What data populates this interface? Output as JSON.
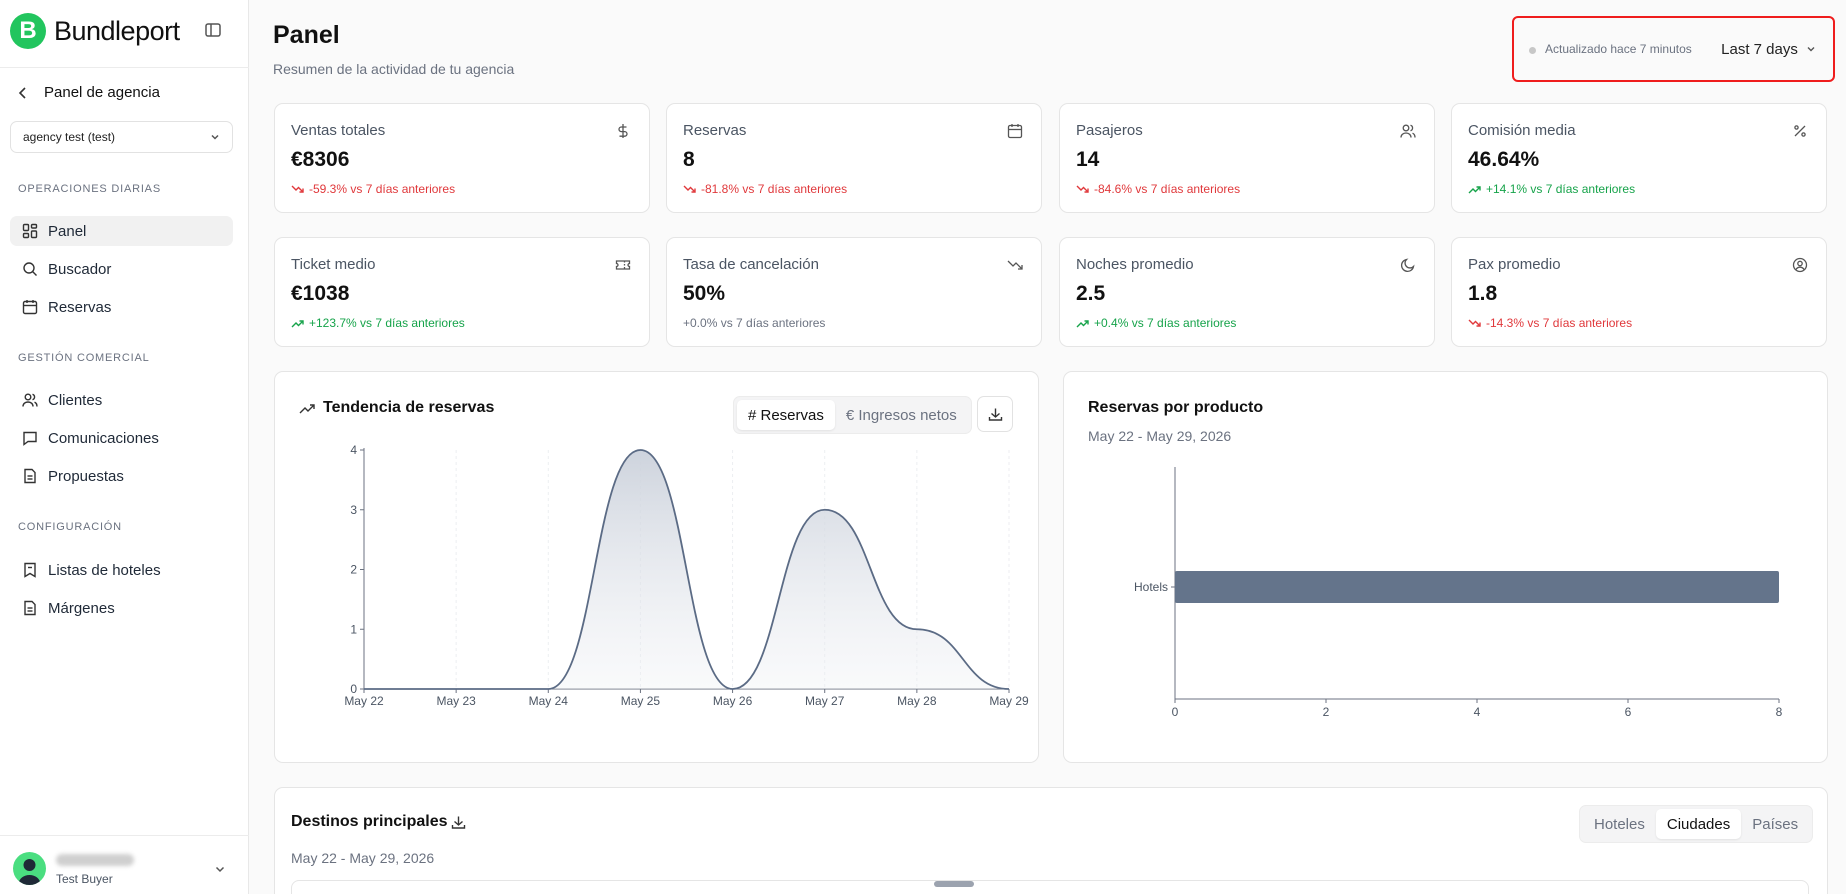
{
  "sidebar": {
    "brand": "Bundleport",
    "back_label": "Panel de agencia",
    "agency": "agency test (test)",
    "sections": [
      {
        "title": "OPERACIONES DIARIAS",
        "items": [
          "Panel",
          "Buscador",
          "Reservas"
        ]
      },
      {
        "title": "GESTIÓN COMERCIAL",
        "items": [
          "Clientes",
          "Comunicaciones",
          "Propuestas"
        ]
      },
      {
        "title": "CONFIGURACIÓN",
        "items": [
          "Listas de hoteles",
          "Márgenes"
        ]
      }
    ],
    "active_item": "Panel",
    "user_role": "Test Buyer"
  },
  "header": {
    "title": "Panel",
    "subtitle": "Resumen de la actividad de tu agencia",
    "updated": "Actualizado hace 7 minutos",
    "range": "Last 7 days"
  },
  "kpis": [
    {
      "label": "Ventas totales",
      "value": "€8306",
      "delta": "-59.3% vs 7 días anteriores",
      "trend": "down",
      "icon": "dollar-icon"
    },
    {
      "label": "Reservas",
      "value": "8",
      "delta": "-81.8% vs 7 días anteriores",
      "trend": "down",
      "icon": "calendar-icon"
    },
    {
      "label": "Pasajeros",
      "value": "14",
      "delta": "-84.6% vs 7 días anteriores",
      "trend": "down",
      "icon": "users-icon"
    },
    {
      "label": "Comisión media",
      "value": "46.64%",
      "delta": "+14.1% vs 7 días anteriores",
      "trend": "up",
      "icon": "percent-icon"
    },
    {
      "label": "Ticket medio",
      "value": "€1038",
      "delta": "+123.7% vs 7 días anteriores",
      "trend": "up",
      "icon": "ticket-icon"
    },
    {
      "label": "Tasa de cancelación",
      "value": "50%",
      "delta": "+0.0% vs 7 días anteriores",
      "trend": "flat",
      "icon": "trending-down-icon"
    },
    {
      "label": "Noches promedio",
      "value": "2.5",
      "delta": "+0.4% vs 7 días anteriores",
      "trend": "up",
      "icon": "moon-icon"
    },
    {
      "label": "Pax promedio",
      "value": "1.8",
      "delta": "-14.3% vs 7 días anteriores",
      "trend": "down",
      "icon": "user-circle-icon"
    }
  ],
  "trend_panel": {
    "title": "Tendencia de reservas",
    "tabs": [
      "# Reservas",
      "€ Ingresos netos"
    ],
    "active_tab": "# Reservas"
  },
  "product_panel": {
    "title": "Reservas por producto",
    "date_range": "May 22 - May 29, 2026"
  },
  "destinations_panel": {
    "title": "Destinos principales",
    "date_range": "May 22 - May 29, 2026",
    "tabs": [
      "Hoteles",
      "Ciudades",
      "Países"
    ],
    "active_tab": "Ciudades"
  },
  "chart_data": [
    {
      "type": "area",
      "x": [
        "May 22",
        "May 23",
        "May 24",
        "May 25",
        "May 26",
        "May 27",
        "May 28",
        "May 29"
      ],
      "series": [
        {
          "values": [
            0,
            0,
            0,
            4,
            0,
            3,
            1,
            0
          ]
        }
      ],
      "ylim": [
        0,
        4
      ],
      "yticks": [
        0,
        1,
        2,
        3,
        4
      ],
      "grid": true,
      "color": "#5b6b85"
    },
    {
      "type": "bar",
      "orientation": "horizontal",
      "categories": [
        "Hotels"
      ],
      "values": [
        8
      ],
      "xlim": [
        0,
        8
      ],
      "xticks": [
        0,
        2,
        4,
        6,
        8
      ],
      "color": "#64748b"
    }
  ]
}
